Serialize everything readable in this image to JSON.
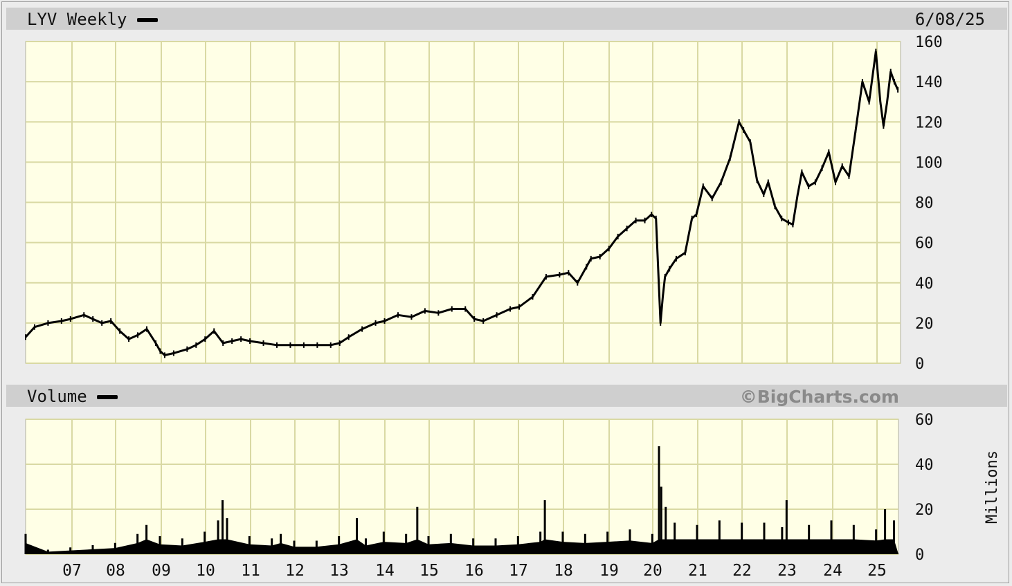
{
  "header": {
    "ticker_label": "LYV Weekly",
    "date": "6/08/25"
  },
  "volume_header": {
    "label": "Volume",
    "watermark": "©BigCharts.com"
  },
  "colors": {
    "plot_background": "#ffffe6",
    "grid": "#d9d9a3",
    "series": "#000000",
    "band": "#cfcfcf"
  },
  "chart_data": [
    {
      "type": "line",
      "title": "LYV Weekly",
      "series": [
        {
          "name": "LYV Weekly",
          "x": [
            2006.0,
            2006.2,
            2006.5,
            2006.8,
            2007.0,
            2007.3,
            2007.5,
            2007.7,
            2007.9,
            2008.1,
            2008.3,
            2008.5,
            2008.7,
            2008.9,
            2009.0,
            2009.1,
            2009.3,
            2009.6,
            2009.8,
            2010.0,
            2010.2,
            2010.4,
            2010.6,
            2010.8,
            2011.0,
            2011.3,
            2011.6,
            2011.9,
            2012.2,
            2012.5,
            2012.8,
            2013.0,
            2013.2,
            2013.5,
            2013.8,
            2014.0,
            2014.3,
            2014.6,
            2014.9,
            2015.2,
            2015.5,
            2015.8,
            2016.0,
            2016.2,
            2016.5,
            2016.8,
            2017.0,
            2017.3,
            2017.6,
            2017.9,
            2018.1,
            2018.3,
            2018.5,
            2018.6,
            2018.8,
            2019.0,
            2019.2,
            2019.4,
            2019.6,
            2019.8,
            2019.95,
            2020.05,
            2020.15,
            2020.2,
            2020.25,
            2020.35,
            2020.5,
            2020.7,
            2020.85,
            2020.95,
            2021.1,
            2021.3,
            2021.5,
            2021.7,
            2021.9,
            2022.0,
            2022.15,
            2022.3,
            2022.45,
            2022.55,
            2022.7,
            2022.85,
            2023.0,
            2023.1,
            2023.2,
            2023.3,
            2023.45,
            2023.6,
            2023.75,
            2023.9,
            2024.05,
            2024.2,
            2024.35,
            2024.5,
            2024.65,
            2024.8,
            2024.95,
            2025.05,
            2025.12,
            2025.2,
            2025.28,
            2025.36,
            2025.44
          ],
          "y": [
            13,
            18,
            20,
            21,
            22,
            24,
            22,
            20,
            21,
            16,
            12,
            14,
            17,
            10,
            6,
            4,
            5,
            7,
            9,
            12,
            16,
            10,
            11,
            12,
            11,
            10,
            9,
            9,
            9,
            9,
            9,
            10,
            13,
            17,
            20,
            21,
            24,
            23,
            26,
            25,
            27,
            27,
            22,
            21,
            24,
            27,
            28,
            33,
            43,
            44,
            45,
            40,
            48,
            52,
            53,
            57,
            63,
            67,
            71,
            71,
            74,
            72,
            20,
            33,
            43,
            47,
            52,
            55,
            72,
            74,
            88,
            82,
            90,
            102,
            120,
            116,
            110,
            91,
            84,
            90,
            78,
            72,
            70,
            69,
            83,
            95,
            88,
            90,
            97,
            105,
            90,
            98,
            93,
            116,
            140,
            130,
            155,
            130,
            118,
            130,
            145,
            140,
            136
          ]
        }
      ],
      "xlim": [
        2006,
        2025.5
      ],
      "ylim": [
        0,
        160
      ],
      "yticks": [
        0,
        20,
        40,
        60,
        80,
        100,
        120,
        140,
        160
      ],
      "xtick_labels": [
        "07",
        "08",
        "09",
        "10",
        "11",
        "12",
        "13",
        "14",
        "15",
        "16",
        "17",
        "18",
        "19",
        "20",
        "21",
        "22",
        "23",
        "24",
        "25"
      ],
      "grid": true,
      "legend": "top-left"
    },
    {
      "type": "bar",
      "title": "Volume",
      "ylabel": "Millions",
      "series": [
        {
          "name": "Volume",
          "x": [
            2006.0,
            2006.5,
            2007.0,
            2007.5,
            2008.0,
            2008.5,
            2008.7,
            2009.0,
            2009.5,
            2010.0,
            2010.3,
            2010.4,
            2010.5,
            2011.0,
            2011.5,
            2011.7,
            2012.0,
            2012.5,
            2013.0,
            2013.4,
            2013.6,
            2014.0,
            2014.5,
            2014.75,
            2015.0,
            2015.5,
            2016.0,
            2016.5,
            2017.0,
            2017.5,
            2017.6,
            2018.0,
            2018.5,
            2019.0,
            2019.5,
            2020.0,
            2020.15,
            2020.2,
            2020.3,
            2020.5,
            2021.0,
            2021.5,
            2022.0,
            2022.5,
            2022.9,
            2023.0,
            2023.5,
            2024.0,
            2024.5,
            2025.0,
            2025.2,
            2025.4
          ],
          "y": [
            9,
            2,
            3,
            4,
            5,
            9,
            13,
            8,
            7,
            10,
            15,
            24,
            16,
            8,
            7,
            9,
            6,
            6,
            8,
            16,
            7,
            10,
            9,
            21,
            8,
            9,
            7,
            7,
            8,
            10,
            24,
            10,
            9,
            10,
            11,
            9,
            48,
            30,
            21,
            14,
            13,
            15,
            14,
            14,
            12,
            24,
            13,
            15,
            13,
            11,
            20,
            15
          ]
        }
      ],
      "xlim": [
        2006,
        2025.5
      ],
      "ylim": [
        0,
        60
      ],
      "yticks": [
        0,
        20,
        40,
        60
      ],
      "xtick_labels": [
        "07",
        "08",
        "09",
        "10",
        "11",
        "12",
        "13",
        "14",
        "15",
        "16",
        "17",
        "18",
        "19",
        "20",
        "21",
        "22",
        "23",
        "24",
        "25"
      ],
      "grid": true
    }
  ]
}
